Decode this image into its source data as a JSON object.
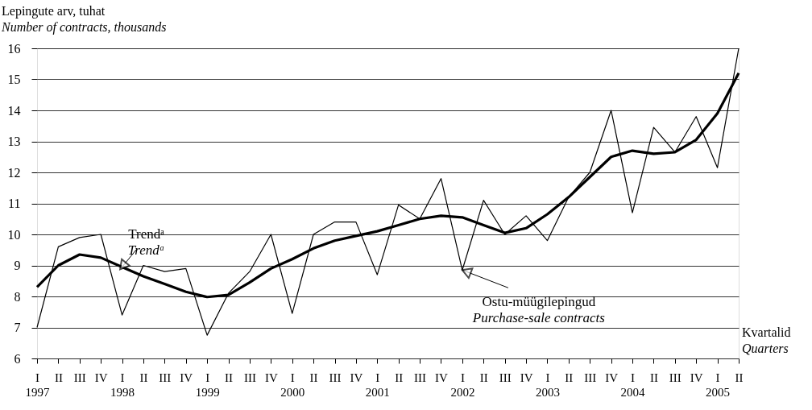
{
  "chart_data": {
    "type": "line",
    "xlabel": "Kvartalid\nQuarters",
    "ylabel": "Lepingute arv, tuhat\nNumber of contracts, thousands",
    "categories": [
      "I\n1997",
      "II",
      "III",
      "IV",
      "I\n1998",
      "II",
      "III",
      "IV",
      "I\n1999",
      "II",
      "III",
      "IV",
      "I\n2000",
      "II",
      "III",
      "IV",
      "I\n2001",
      "II",
      "III",
      "IV",
      "I\n2002",
      "II",
      "III",
      "IV",
      "I\n2003",
      "II",
      "III",
      "IV",
      "I\n2004",
      "II",
      "III",
      "IV",
      "I\n2005",
      "II"
    ],
    "series": [
      {
        "name": "Ostu-müügilepingud\nPurchase-sale contracts",
        "color": "#000000",
        "values": [
          7.0,
          9.6,
          9.9,
          10.0,
          7.4,
          9.0,
          8.8,
          8.9,
          6.75,
          8.1,
          8.8,
          10.0,
          7.45,
          10.0,
          10.4,
          10.4,
          8.7,
          10.95,
          10.5,
          11.8,
          8.85,
          11.1,
          10.0,
          10.6,
          9.8,
          11.2,
          12.0,
          14.0,
          10.7,
          13.45,
          12.65,
          13.8,
          12.15,
          16.0
        ]
      },
      {
        "name": "Trendᵃ\nTrendᵃ",
        "color": "#000000",
        "values": [
          8.3,
          9.0,
          9.35,
          9.25,
          8.95,
          8.65,
          8.4,
          8.15,
          7.98,
          8.05,
          8.45,
          8.9,
          9.2,
          9.55,
          9.8,
          9.95,
          10.1,
          10.3,
          10.5,
          10.6,
          10.55,
          10.3,
          10.05,
          10.2,
          10.65,
          11.2,
          11.85,
          12.5,
          12.7,
          12.6,
          12.65,
          13.05,
          13.9,
          15.2
        ]
      }
    ],
    "ylim": [
      6,
      16
    ],
    "yticks": [
      6,
      7,
      8,
      9,
      10,
      11,
      12,
      13,
      14,
      15,
      16
    ],
    "grid": "y",
    "marker": "none",
    "line_style": "solid"
  }
}
